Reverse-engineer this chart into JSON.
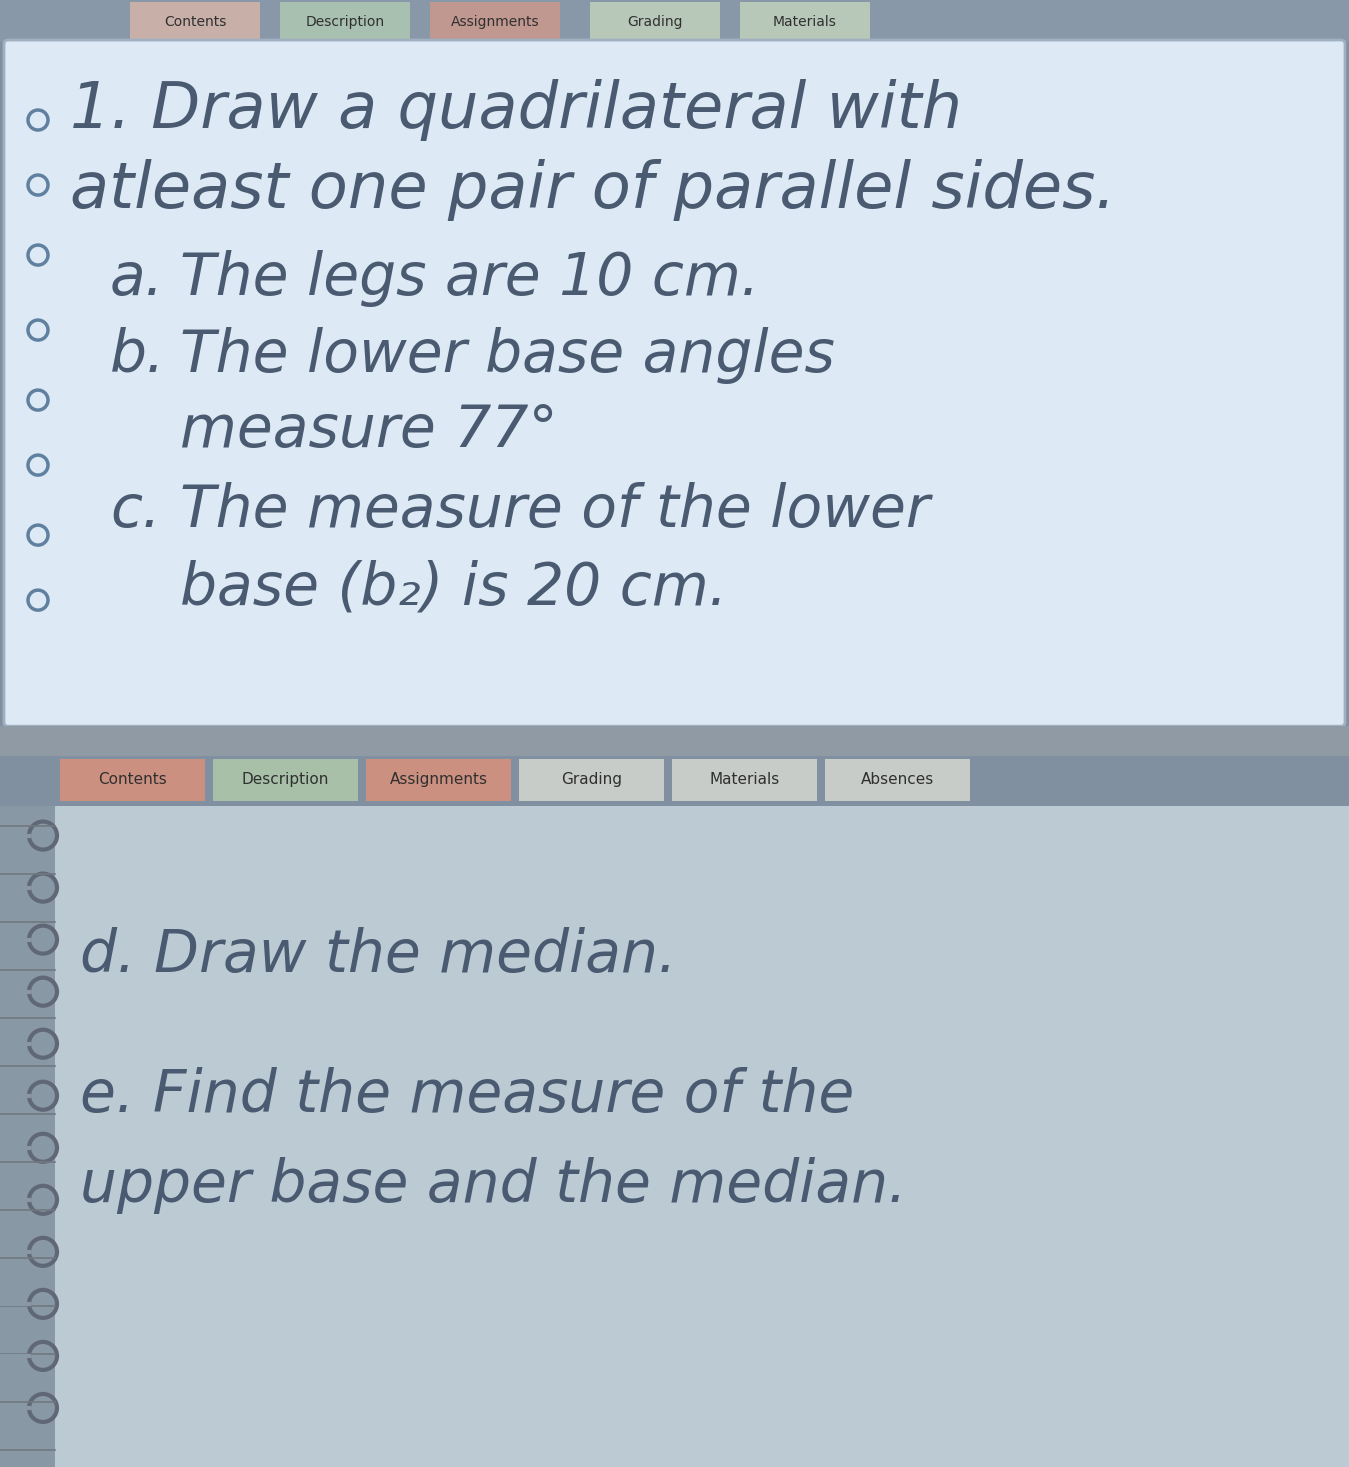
{
  "overall_bg": "#8090a0",
  "top_panel_bg": "#ddeaf5",
  "top_panel_edge": "#a0b0c0",
  "top_tab_strip_bg": "#8898a8",
  "top_tabs": [
    "Contents",
    "Description",
    "Assignments",
    "Grading",
    "Materials"
  ],
  "top_tab_colors": [
    "#c8b0a8",
    "#a8c0b0",
    "#c09890",
    "#b8c8b8",
    "#b8c8b8"
  ],
  "title_line1": "1. Draw a quadrilateral with",
  "title_line2": "atleast one pair of parallel sides.",
  "item_a_label": "a.",
  "item_a_text": "The legs are 10 cm.",
  "item_b_label": "b.",
  "item_b_line1": "The lower base angles",
  "item_b_line2": "measure 77°",
  "item_c_label": "c.",
  "item_c_line1": "The measure of the lower",
  "item_c_line2": "base (b₂) is 20 cm.",
  "sep_bg": "#909aa4",
  "bot_tab_strip_bg": "#8090a0",
  "bot_tabs": [
    "Contents",
    "Description",
    "Assignments",
    "Grading",
    "Materials",
    "Absences"
  ],
  "bot_tab_colors": [
    "#cc9080",
    "#a8c0a8",
    "#cc9080",
    "#c8ccc8",
    "#c8ccc8",
    "#c8ccc8"
  ],
  "notebook_bg": "#bccad4",
  "binding_bg": "#8898a4",
  "ring_color": "#606878",
  "item_d": "d. Draw the median.",
  "item_e_line1": "e. Find the measure of the",
  "item_e_line2": "upper base and the median.",
  "text_color": "#4a5a70",
  "main_fs": 46,
  "sub_fs": 42,
  "small_fs": 18
}
